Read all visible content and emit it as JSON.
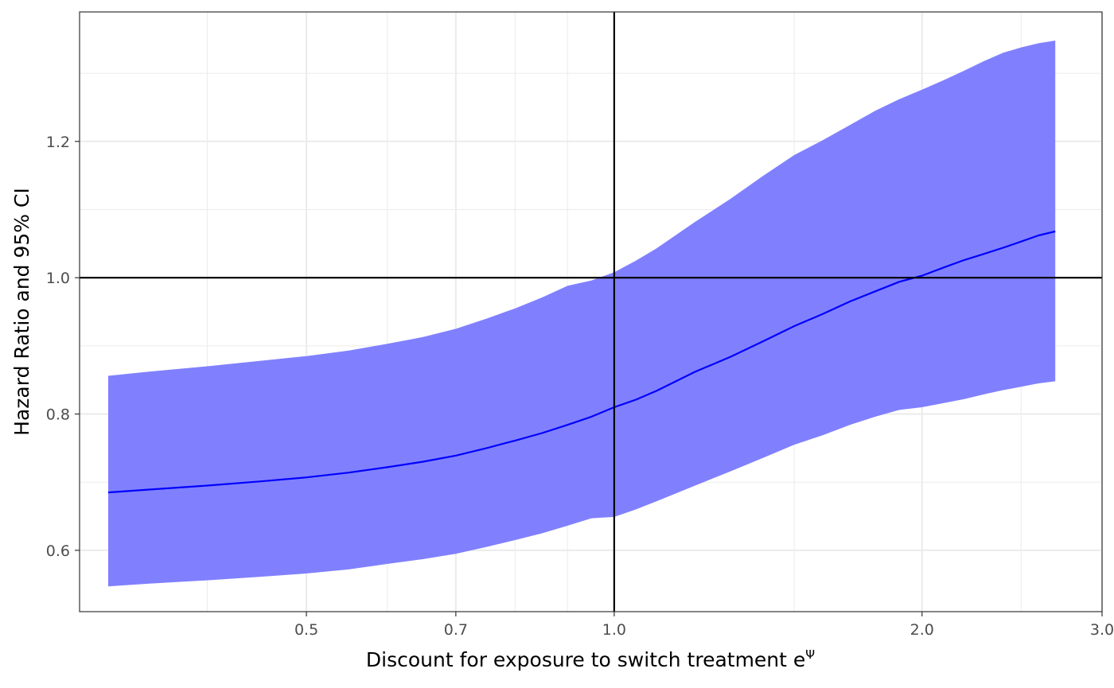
{
  "chart_data": {
    "type": "line",
    "title": "",
    "xlabel": "Discount for exposure to switch treatment e",
    "xlabel_superscript": "Ψ",
    "ylabel": "Hazard Ratio and 95% CI",
    "x_scale": "log",
    "xlim": [
      0.3,
      3.0
    ],
    "ylim": [
      0.51,
      1.39
    ],
    "x_ticks": [
      {
        "value": 0.5,
        "label": "0.5"
      },
      {
        "value": 0.7,
        "label": "0.7"
      },
      {
        "value": 1.0,
        "label": "1.0"
      },
      {
        "value": 2.0,
        "label": "2.0"
      },
      {
        "value": 3.0,
        "label": "3.0"
      }
    ],
    "x_minor_gridlines": [
      0.4,
      0.6,
      0.8,
      0.9,
      1.5,
      2.5
    ],
    "y_ticks": [
      {
        "value": 0.6,
        "label": "0.6"
      },
      {
        "value": 0.8,
        "label": "0.8"
      },
      {
        "value": 1.0,
        "label": "1.0"
      },
      {
        "value": 1.2,
        "label": "1.2"
      }
    ],
    "y_minor_gridlines": [
      0.7,
      0.9,
      1.1,
      1.3
    ],
    "grid": true,
    "reference_lines": {
      "x": 1.0,
      "y": 1.0
    },
    "series": [
      {
        "x": [
          0.32,
          0.35,
          0.4,
          0.45,
          0.5,
          0.55,
          0.6,
          0.65,
          0.7,
          0.75,
          0.8,
          0.85,
          0.9,
          0.95,
          1.0,
          1.05,
          1.1,
          1.2,
          1.3,
          1.4,
          1.5,
          1.6,
          1.7,
          1.8,
          1.9,
          2.0,
          2.1,
          2.2,
          2.3,
          2.4,
          2.5,
          2.6,
          2.7
        ],
        "y": [
          0.685,
          0.689,
          0.695,
          0.701,
          0.707,
          0.714,
          0.722,
          0.73,
          0.739,
          0.75,
          0.761,
          0.772,
          0.784,
          0.796,
          0.81,
          0.821,
          0.834,
          0.862,
          0.884,
          0.907,
          0.929,
          0.947,
          0.965,
          0.98,
          0.994,
          1.003,
          1.015,
          1.026,
          1.035,
          1.044,
          1.053,
          1.062,
          1.068
        ],
        "lower": [
          0.547,
          0.551,
          0.556,
          0.561,
          0.566,
          0.572,
          0.58,
          0.587,
          0.595,
          0.605,
          0.615,
          0.625,
          0.636,
          0.647,
          0.649,
          0.66,
          0.672,
          0.695,
          0.716,
          0.736,
          0.755,
          0.769,
          0.784,
          0.796,
          0.806,
          0.81,
          0.816,
          0.822,
          0.829,
          0.835,
          0.84,
          0.845,
          0.848
        ],
        "upper": [
          0.856,
          0.862,
          0.87,
          0.878,
          0.885,
          0.893,
          0.903,
          0.913,
          0.925,
          0.94,
          0.955,
          0.971,
          0.988,
          0.996,
          1.008,
          1.025,
          1.043,
          1.082,
          1.116,
          1.15,
          1.18,
          1.202,
          1.224,
          1.245,
          1.262,
          1.276,
          1.29,
          1.304,
          1.318,
          1.33,
          1.338,
          1.344,
          1.348
        ]
      }
    ],
    "colors": {
      "line": "#0000ff",
      "ribbon": "#8080ff",
      "reference": "#000000",
      "grid": "#ebebeb",
      "panel_border": "#333333"
    }
  }
}
